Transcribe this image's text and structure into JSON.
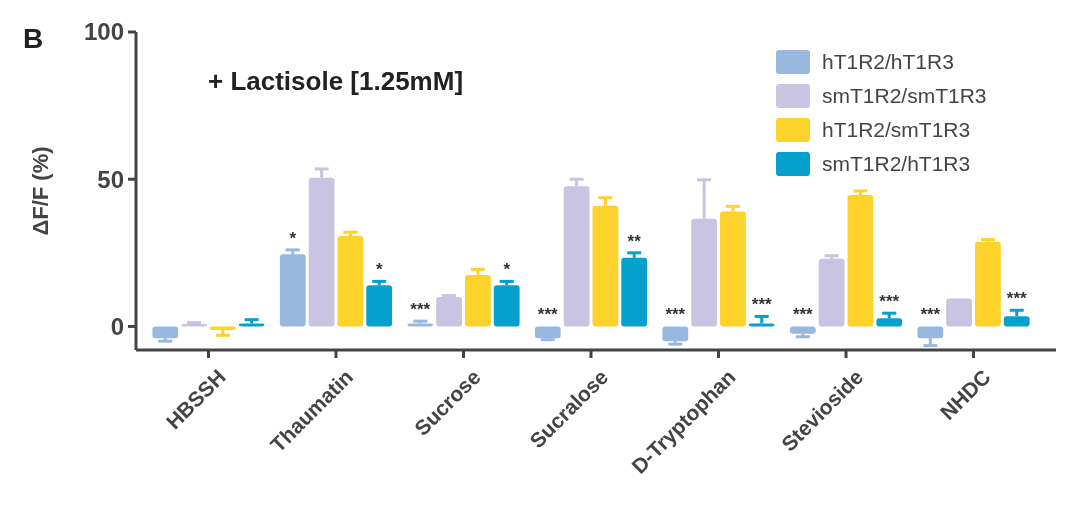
{
  "chart_data": {
    "type": "bar",
    "title": "+ Lactisole [1.25mM]",
    "ylabel": "ΔF/F (%)",
    "annotations": [
      "B"
    ],
    "categories": [
      "HBSSH",
      "Thaumatin",
      "Sucrose",
      "Sucralose",
      "D-Tryptophan",
      "Stevioside",
      "NHDC"
    ],
    "ylim": [
      -8,
      100
    ],
    "yticks": [
      0,
      50,
      100
    ],
    "grid": false,
    "legend": "top right",
    "series": [
      {
        "name": "hT1R2/hT1R3",
        "color": "#98b8e0",
        "values": [
          -4,
          24.5,
          1,
          -4,
          -5,
          -2.5,
          -4
        ],
        "errors": [
          [
            -5,
            -4
          ],
          [
            24.5,
            26
          ],
          [
            1,
            1.8
          ],
          [
            -4.5,
            -4
          ],
          [
            -6,
            -5
          ],
          [
            -3.5,
            -2.5
          ],
          [
            -6.5,
            -4
          ]
        ],
        "value_labels": [
          null,
          "*",
          "***",
          "***",
          "***",
          "***",
          "***"
        ]
      },
      {
        "name": "smT1R2/smT1R3",
        "color": "#c8c4e2",
        "values": [
          0.8,
          50.5,
          10,
          47.6,
          36.6,
          23,
          9.5
        ],
        "errors": [
          [
            0.8,
            1.3
          ],
          [
            50.5,
            53.5
          ],
          [
            10,
            10.5
          ],
          [
            47.6,
            50
          ],
          [
            36.6,
            49.8
          ],
          [
            23,
            24
          ],
          null
        ],
        "value_labels": [
          null,
          null,
          null,
          null,
          null,
          null,
          null
        ]
      },
      {
        "name": "hT1R2/smT1R3",
        "color": "#fdd22a",
        "values": [
          -1.2,
          30.7,
          17.5,
          41,
          39,
          44.6,
          28.8
        ],
        "errors": [
          [
            -3,
            -1.2
          ],
          [
            30.7,
            32
          ],
          [
            17.5,
            19.4
          ],
          [
            41,
            43.7
          ],
          [
            39,
            40.8
          ],
          [
            44.6,
            46
          ],
          [
            28.8,
            29.5
          ]
        ],
        "value_labels": [
          null,
          null,
          null,
          null,
          null,
          null,
          null
        ]
      },
      {
        "name": "smT1R2/hT1R3",
        "color": "#06a0cc",
        "values": [
          1,
          14,
          14,
          23.3,
          1,
          2.8,
          3.5
        ],
        "errors": [
          [
            1,
            2.3
          ],
          [
            14,
            15.3
          ],
          [
            14,
            15.3
          ],
          [
            23.3,
            25
          ],
          [
            1,
            3.4
          ],
          [
            2.8,
            4.5
          ],
          [
            3.5,
            5.5
          ]
        ],
        "value_labels": [
          null,
          "*",
          "*",
          "**",
          "***",
          "***",
          "***"
        ]
      }
    ]
  }
}
